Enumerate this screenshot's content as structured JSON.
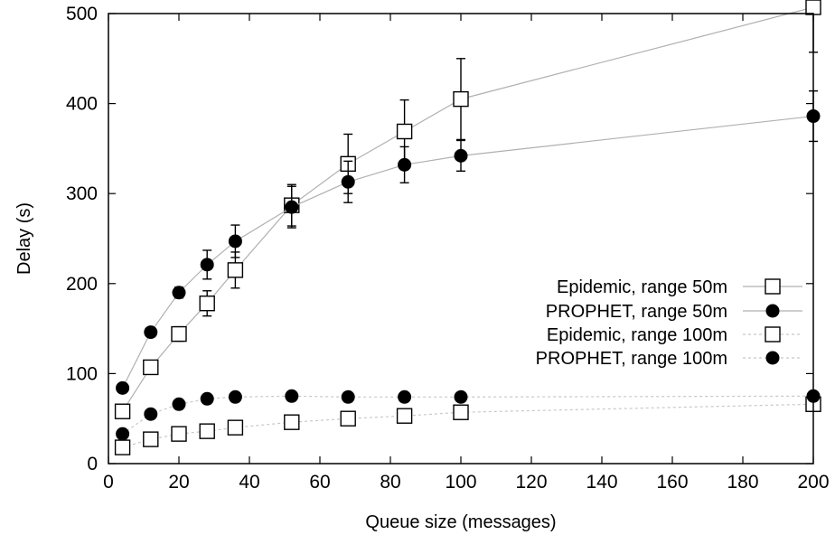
{
  "chart_data": {
    "type": "line",
    "xlabel": "Queue size (messages)",
    "ylabel": "Delay (s)",
    "xlim": [
      0,
      200
    ],
    "ylim": [
      0,
      500
    ],
    "xticks": [
      0,
      20,
      40,
      60,
      80,
      100,
      120,
      140,
      160,
      180,
      200
    ],
    "yticks": [
      0,
      100,
      200,
      300,
      400,
      500
    ],
    "grid": false,
    "legend_position": "right",
    "series": [
      {
        "name": "Epidemic, range 50m",
        "marker": "open-square",
        "line": "solid",
        "line_color": "#b0b0b0",
        "x": [
          4,
          12,
          20,
          28,
          36,
          52,
          68,
          84,
          100,
          200
        ],
        "y": [
          58,
          107,
          144,
          178,
          215,
          287,
          333,
          369,
          405,
          507
        ],
        "err": [
          0,
          6,
          8,
          14,
          20,
          23,
          33,
          35,
          45,
          50
        ]
      },
      {
        "name": "PROPHET, range 50m",
        "marker": "filled-circle",
        "line": "solid",
        "line_color": "#b0b0b0",
        "x": [
          4,
          12,
          20,
          28,
          36,
          52,
          68,
          84,
          100,
          200
        ],
        "y": [
          84,
          146,
          190,
          221,
          247,
          285,
          313,
          332,
          342,
          386
        ],
        "err": [
          0,
          0,
          6,
          16,
          18,
          23,
          23,
          20,
          17,
          28
        ]
      },
      {
        "name": "Epidemic, range 100m",
        "marker": "open-square",
        "line": "dashed",
        "line_color": "#c8c8c8",
        "x": [
          4,
          12,
          20,
          28,
          36,
          52,
          68,
          84,
          100,
          200
        ],
        "y": [
          18,
          27,
          33,
          36,
          40,
          46,
          50,
          53,
          57,
          66
        ],
        "err": [
          0,
          3,
          4,
          4,
          4,
          5,
          6,
          6,
          6,
          7
        ]
      },
      {
        "name": "PROPHET, range 100m",
        "marker": "filled-circle",
        "line": "dashed",
        "line_color": "#c8c8c8",
        "x": [
          4,
          12,
          20,
          28,
          36,
          52,
          68,
          84,
          100,
          200
        ],
        "y": [
          33,
          55,
          66,
          72,
          74,
          75,
          74,
          74,
          74,
          75
        ],
        "err": [
          0,
          0,
          0,
          0,
          0,
          0,
          0,
          0,
          0,
          0
        ]
      }
    ]
  }
}
